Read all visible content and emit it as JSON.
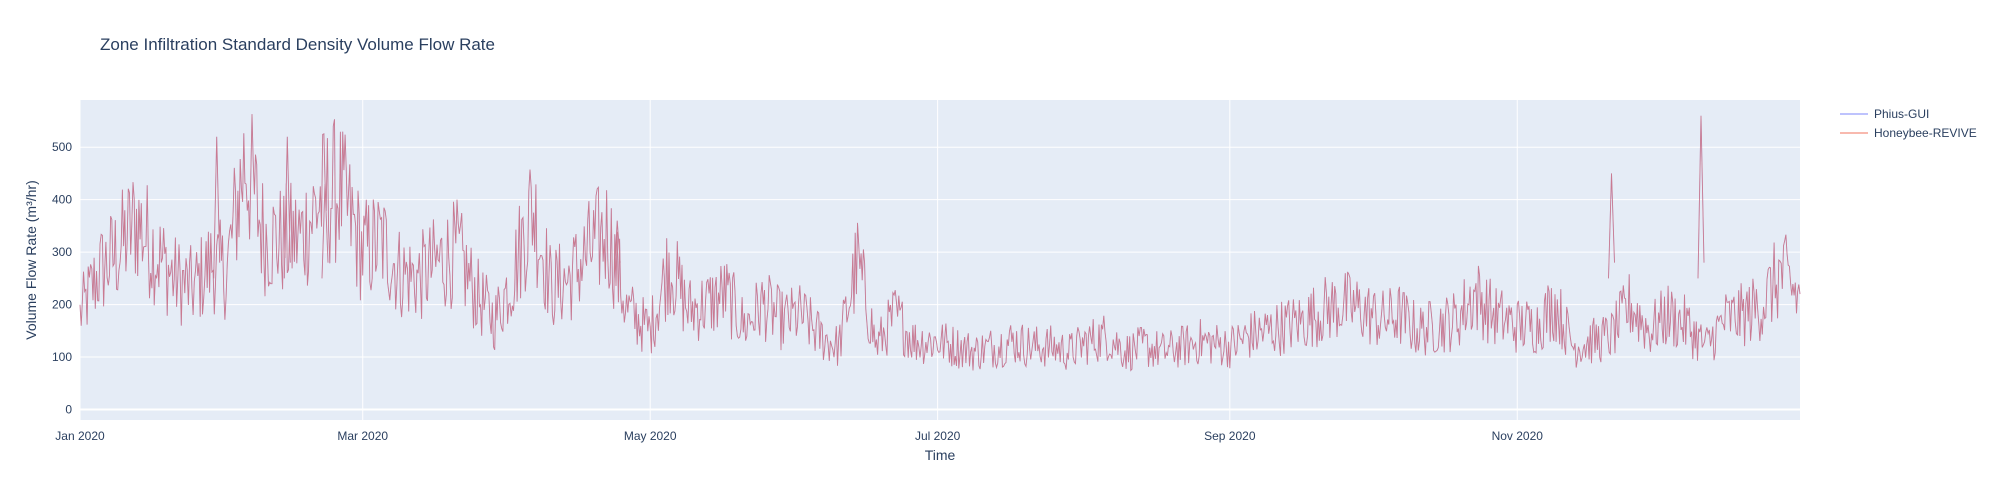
{
  "chart_data": {
    "type": "line",
    "title": "Zone Infiltration Standard Density Volume Flow Rate",
    "xlabel": "Time",
    "ylabel": "Volume Flow Rate (m³/hr)",
    "xlim": [
      "2020-01-01",
      "2020-12-31"
    ],
    "ylim": [
      -20,
      590
    ],
    "y_ticks": [
      0,
      100,
      200,
      300,
      400,
      500
    ],
    "x_ticks": [
      {
        "date": "2020-01-01",
        "label": "Jan 2020"
      },
      {
        "date": "2020-03-01",
        "label": "Mar 2020"
      },
      {
        "date": "2020-05-01",
        "label": "May 2020"
      },
      {
        "date": "2020-07-01",
        "label": "Jul 2020"
      },
      {
        "date": "2020-09-01",
        "label": "Sep 2020"
      },
      {
        "date": "2020-11-01",
        "label": "Nov 2020"
      }
    ],
    "grid": true,
    "legend_position": "top-right",
    "plot_background": "#e5ecf6",
    "series": [
      {
        "name": "Phius-GUI",
        "color": "#636efa",
        "x": [
          "2020-01-01",
          "2020-01-05",
          "2020-01-09",
          "2020-01-13",
          "2020-01-17",
          "2020-01-21",
          "2020-01-25",
          "2020-01-29",
          "2020-02-01",
          "2020-02-05",
          "2020-02-09",
          "2020-02-13",
          "2020-02-17",
          "2020-02-21",
          "2020-02-25",
          "2020-03-01",
          "2020-03-05",
          "2020-03-09",
          "2020-03-13",
          "2020-03-17",
          "2020-03-21",
          "2020-03-25",
          "2020-03-29",
          "2020-04-02",
          "2020-04-06",
          "2020-04-10",
          "2020-04-14",
          "2020-04-18",
          "2020-04-22",
          "2020-04-26",
          "2020-05-01",
          "2020-05-05",
          "2020-05-09",
          "2020-05-13",
          "2020-05-17",
          "2020-05-21",
          "2020-05-25",
          "2020-05-29",
          "2020-06-02",
          "2020-06-06",
          "2020-06-10",
          "2020-06-14",
          "2020-06-18",
          "2020-06-22",
          "2020-06-26",
          "2020-07-01",
          "2020-07-05",
          "2020-07-09",
          "2020-07-13",
          "2020-07-17",
          "2020-07-21",
          "2020-07-25",
          "2020-07-29",
          "2020-08-02",
          "2020-08-06",
          "2020-08-10",
          "2020-08-14",
          "2020-08-18",
          "2020-08-22",
          "2020-08-26",
          "2020-09-01",
          "2020-09-05",
          "2020-09-09",
          "2020-09-13",
          "2020-09-17",
          "2020-09-21",
          "2020-09-25",
          "2020-09-29",
          "2020-10-03",
          "2020-10-07",
          "2020-10-11",
          "2020-10-15",
          "2020-10-19",
          "2020-10-23",
          "2020-10-27",
          "2020-11-01",
          "2020-11-05",
          "2020-11-09",
          "2020-11-13",
          "2020-11-17",
          "2020-11-21",
          "2020-11-25",
          "2020-11-29",
          "2020-12-03",
          "2020-12-07",
          "2020-12-11",
          "2020-12-15",
          "2020-12-19",
          "2020-12-23",
          "2020-12-27",
          "2020-12-31"
        ],
        "y": [
          180,
          260,
          300,
          360,
          300,
          250,
          230,
          280,
          260,
          480,
          330,
          320,
          330,
          400,
          420,
          300,
          320,
          260,
          250,
          280,
          300,
          220,
          170,
          260,
          390,
          230,
          250,
          300,
          340,
          190,
          150,
          280,
          190,
          200,
          220,
          160,
          200,
          170,
          180,
          140,
          120,
          280,
          120,
          180,
          130,
          130,
          120,
          110,
          120,
          130,
          120,
          120,
          110,
          130,
          140,
          110,
          120,
          110,
          120,
          130,
          120,
          140,
          150,
          160,
          170,
          190,
          200,
          190,
          170,
          180,
          150,
          160,
          170,
          220,
          180,
          160,
          160,
          200,
          120,
          130,
          140,
          200,
          150,
          180,
          160,
          120,
          170,
          180,
          200,
          260,
          210
        ],
        "interpolate": "daily"
      },
      {
        "name": "Honeybee-REVIVE",
        "color": "#ef553b",
        "same_as_series": 0
      }
    ]
  }
}
